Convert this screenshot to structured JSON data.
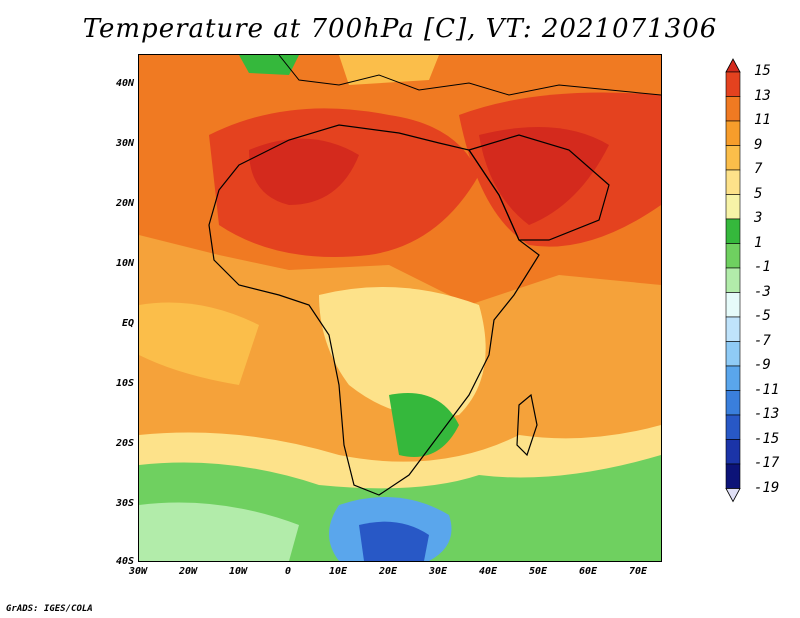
{
  "title": "Temperature at 700hPa [C], VT: 2021071306",
  "credit": "GrADS: IGES/COLA",
  "lat_labels": [
    "40N",
    "30N",
    "20N",
    "10N",
    "EQ",
    "10S",
    "20S",
    "30S",
    "40S"
  ],
  "lon_labels": [
    "30W",
    "20W",
    "10W",
    "0",
    "10E",
    "20E",
    "30E",
    "40E",
    "50E",
    "60E",
    "70E"
  ],
  "colorbar": {
    "levels": [
      "15",
      "13",
      "11",
      "9",
      "7",
      "5",
      "3",
      "1",
      "-1",
      "-3",
      "-5",
      "-7",
      "-9",
      "-11",
      "-13",
      "-15",
      "-17",
      "-19"
    ],
    "colors": [
      "#d42a1d",
      "#e4421f",
      "#f07a22",
      "#f79d2b",
      "#fbbe4a",
      "#fde28a",
      "#f7f3a7",
      "#35b83c",
      "#6fd060",
      "#b2ecaa",
      "#e6fbfa",
      "#bfe3fb",
      "#8fcbf6",
      "#5aa6ec",
      "#3a7fdc",
      "#2858c6",
      "#1b34a8",
      "#0c1378",
      "#e0e0f6"
    ]
  }
}
